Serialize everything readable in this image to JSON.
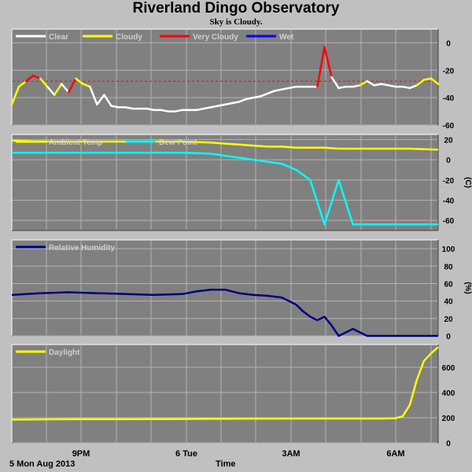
{
  "header": {
    "title": "Riverland Dingo Observatory",
    "subtitle": "Sky is Cloudy."
  },
  "footer": {
    "date": "5 Mon Aug 2013",
    "xlabel": "Time"
  },
  "colors": {
    "background": "#c0c0c0",
    "plot_bg": "#808080",
    "grid": "#b4b4b4",
    "clear": "#ffffff",
    "cloudy": "#ffff00",
    "very_cloudy": "#ff0000",
    "wet": "#0000ff",
    "ambient": "#ffff00",
    "dew": "#00ffff",
    "humidity": "#000080",
    "daylight": "#ffff00",
    "threshold": "#ff0000"
  },
  "x_ticks": [
    "9PM",
    "6 Tue",
    "3AM",
    "6AM"
  ],
  "chart_data": [
    {
      "type": "line",
      "name": "sky",
      "ylim": [
        -60,
        10
      ],
      "yticks": [
        0,
        -20,
        -40,
        -60
      ],
      "ylabel": "",
      "legend": [
        "Clear",
        "Cloudy",
        "Very Cloudy",
        "Wet"
      ],
      "threshold": -28,
      "x": [
        0,
        1,
        2,
        3,
        4,
        5,
        6,
        7,
        8,
        9,
        10,
        11,
        12,
        13,
        14,
        15,
        16,
        17,
        18,
        19,
        20,
        21,
        22,
        23,
        24,
        25,
        26,
        27,
        28,
        29,
        30,
        31,
        32,
        33,
        34,
        35,
        36,
        37,
        38,
        39,
        40,
        41,
        42,
        43,
        44,
        45,
        46,
        47,
        48,
        49,
        50,
        51,
        52,
        53,
        54,
        55,
        56,
        57,
        58,
        59,
        60
      ],
      "y": [
        -45,
        -32,
        -28,
        -24,
        -26,
        -32,
        -38,
        -30,
        -36,
        -26,
        -30,
        -32,
        -45,
        -38,
        -46,
        -47,
        -47,
        -48,
        -48,
        -48,
        -49,
        -49,
        -50,
        -50,
        -49,
        -49,
        -49,
        -48,
        -47,
        -46,
        -45,
        -44,
        -43,
        -41,
        -40,
        -39,
        -37,
        -35,
        -34,
        -33,
        -32,
        -32,
        -32,
        -32,
        -3,
        -25,
        -33,
        -32,
        -32,
        -31,
        -28,
        -31,
        -30,
        -31,
        -32,
        -32,
        -33,
        -31,
        -27,
        -26,
        -30
      ],
      "state": [
        "clear",
        "cloudy",
        "cloudy",
        "very_cloudy",
        "very_cloudy",
        "cloudy",
        "clear",
        "cloudy",
        "clear",
        "very_cloudy",
        "cloudy",
        "cloudy",
        "clear",
        "clear",
        "clear",
        "clear",
        "clear",
        "clear",
        "clear",
        "clear",
        "clear",
        "clear",
        "clear",
        "clear",
        "clear",
        "clear",
        "clear",
        "clear",
        "clear",
        "clear",
        "clear",
        "clear",
        "clear",
        "clear",
        "clear",
        "clear",
        "clear",
        "clear",
        "clear",
        "clear",
        "clear",
        "clear",
        "clear",
        "clear",
        "very_cloudy",
        "very_cloudy",
        "clear",
        "clear",
        "clear",
        "clear",
        "cloudy",
        "clear",
        "clear",
        "clear",
        "clear",
        "clear",
        "clear",
        "clear",
        "cloudy",
        "cloudy",
        "cloudy"
      ]
    },
    {
      "type": "line",
      "name": "temperature",
      "ylim": [
        -70,
        25
      ],
      "yticks": [
        20,
        0,
        -20,
        -40,
        -60
      ],
      "ylabel": "(C)",
      "legend": [
        "Ambient Temp",
        "Dew Point"
      ],
      "x": [
        0,
        4,
        8,
        12,
        16,
        20,
        24,
        28,
        30,
        32,
        34,
        36,
        38,
        40,
        42,
        44,
        46,
        48,
        50,
        52,
        56,
        60
      ],
      "series": [
        {
          "name": "Ambient Temp",
          "color_key": "ambient",
          "values": [
            19,
            18,
            18,
            18,
            18,
            18,
            18,
            17,
            16,
            15,
            14,
            13,
            13,
            12,
            12,
            12,
            11,
            11,
            11,
            11,
            11,
            10
          ]
        },
        {
          "name": "Dew Point",
          "color_key": "dew",
          "values": [
            7,
            7,
            7,
            7,
            7,
            7,
            7,
            6,
            4,
            2,
            0,
            -2,
            -4,
            -10,
            -20,
            -64,
            -20,
            -64,
            -64,
            -64,
            -64,
            -64
          ]
        }
      ]
    },
    {
      "type": "line",
      "name": "humidity",
      "ylim": [
        0,
        110
      ],
      "yticks": [
        100,
        80,
        60,
        40,
        20,
        0
      ],
      "ylabel": "(%)",
      "legend": [
        "Relative Humidity"
      ],
      "x": [
        0,
        4,
        8,
        12,
        16,
        20,
        24,
        26,
        28,
        30,
        32,
        34,
        36,
        38,
        40,
        41,
        42,
        43,
        44,
        45,
        46,
        48,
        50,
        52,
        54,
        56,
        58,
        60
      ],
      "series": [
        {
          "name": "Relative Humidity",
          "color_key": "humidity",
          "values": [
            47,
            49,
            50,
            49,
            48,
            47,
            48,
            51,
            53,
            53,
            49,
            47,
            46,
            44,
            36,
            28,
            22,
            18,
            22,
            12,
            0,
            8,
            0,
            0,
            0,
            0,
            0,
            0
          ]
        }
      ]
    },
    {
      "type": "line",
      "name": "daylight",
      "ylim": [
        0,
        780
      ],
      "yticks": [
        600,
        400,
        200,
        0
      ],
      "ylabel": "",
      "legend": [
        "Daylight"
      ],
      "x": [
        0,
        8,
        16,
        24,
        32,
        40,
        48,
        52,
        54,
        55,
        56,
        57,
        58,
        59,
        60
      ],
      "series": [
        {
          "name": "Daylight",
          "color_key": "daylight",
          "values": [
            185,
            188,
            188,
            190,
            192,
            193,
            193,
            193,
            196,
            210,
            300,
            500,
            650,
            710,
            760
          ]
        }
      ]
    }
  ]
}
